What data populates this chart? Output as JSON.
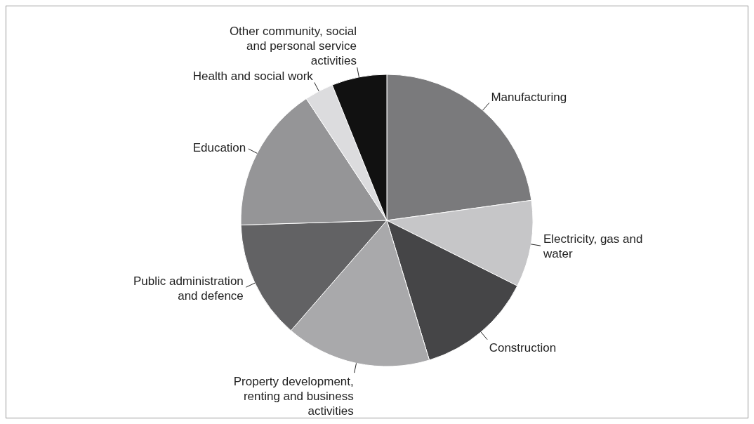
{
  "chart_data": {
    "type": "pie",
    "categories": [
      "Manufacturing",
      "Electricity, gas and water",
      "Construction",
      "Property development, renting and business activities",
      "Public administration and defence",
      "Education",
      "Health and social work",
      "Other community, social and personal service activities"
    ],
    "values": [
      22.8,
      9.6,
      12.9,
      16.1,
      13.1,
      16.2,
      3.2,
      6.1
    ],
    "colors": [
      "#7a7a7c",
      "#c6c6c8",
      "#454547",
      "#a9a9ab",
      "#626264",
      "#959597",
      "#dcdcde",
      "#111111"
    ]
  }
}
